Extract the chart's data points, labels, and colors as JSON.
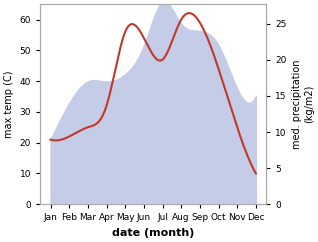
{
  "months": [
    "Jan",
    "Feb",
    "Mar",
    "Apr",
    "May",
    "Jun",
    "Jul",
    "Aug",
    "Sep",
    "Oct",
    "Nov",
    "Dec"
  ],
  "temp_max": [
    21,
    22,
    25,
    32,
    56,
    54,
    47,
    60,
    59,
    44,
    25,
    10
  ],
  "precipitation": [
    9,
    14,
    17,
    17,
    18,
    22,
    28,
    25,
    24,
    22,
    16,
    15
  ],
  "temp_color": "#c0392b",
  "precip_fill_color": "#c5cce8",
  "xlabel": "date (month)",
  "ylabel_left": "max temp (C)",
  "ylabel_right": "med. precipitation\n(kg/m2)",
  "ylim_left": [
    0,
    65
  ],
  "ylim_right": [
    0,
    27.7
  ],
  "yticks_left": [
    0,
    10,
    20,
    30,
    40,
    50,
    60
  ],
  "yticks_right": [
    0,
    5,
    10,
    15,
    20,
    25
  ],
  "bg_color": "#ffffff",
  "spine_color": "#aaaaaa"
}
